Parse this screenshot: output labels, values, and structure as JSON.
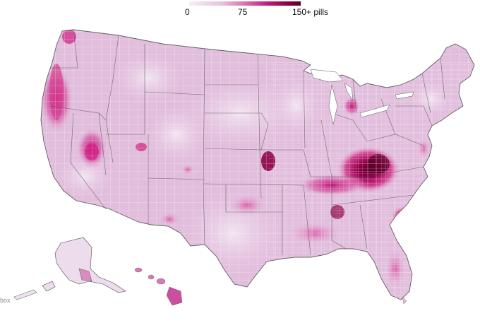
{
  "legend": {
    "min_label": "0",
    "mid_label": "75",
    "max_label": "150+ pills",
    "scale_min": 0,
    "scale_max": 150,
    "colors": [
      "#f4eef6",
      "#e7c1df",
      "#d46aae",
      "#c61a78",
      "#8e0047",
      "#5a0028"
    ]
  },
  "map": {
    "region": "United States counties",
    "base_color": "#e6c6e2",
    "border_color": "#444444",
    "county_line_color": "#ffffff",
    "hotspots": [
      {
        "name": "Appalachia (KY/WV/VA)",
        "level": 150
      },
      {
        "name": "Northern California",
        "level": 110
      },
      {
        "name": "Nevada",
        "level": 95
      },
      {
        "name": "Oregon coast",
        "level": 100
      },
      {
        "name": "Tennessee",
        "level": 120
      },
      {
        "name": "South Carolina coast",
        "level": 115
      },
      {
        "name": "Missouri",
        "level": 130
      },
      {
        "name": "Michigan",
        "level": 110
      },
      {
        "name": "Oklahoma",
        "level": 95
      }
    ]
  },
  "credit": "box"
}
